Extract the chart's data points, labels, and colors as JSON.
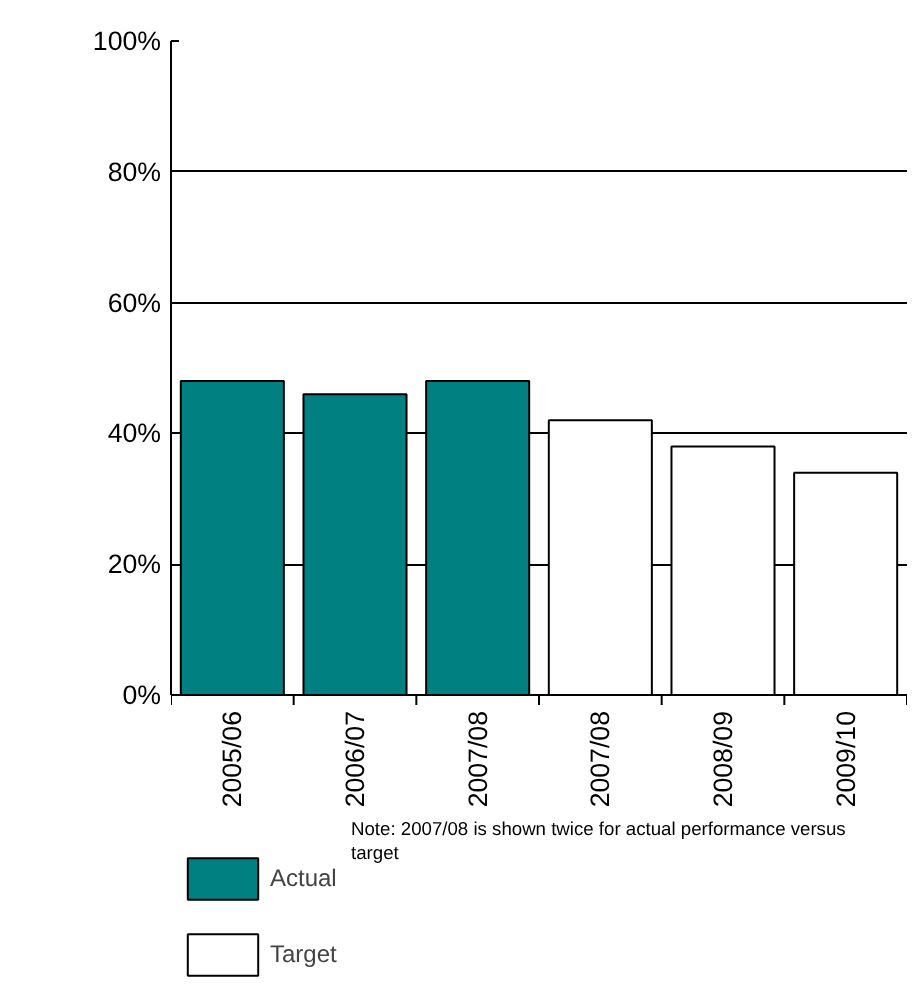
{
  "chart_data": {
    "type": "bar",
    "categories": [
      "2005/06",
      "2006/07",
      "2007/08",
      "2007/08",
      "2008/09",
      "2009/10"
    ],
    "series": [
      {
        "name": "Actual",
        "color": "#008080",
        "values": [
          48,
          46,
          48,
          null,
          null,
          null
        ]
      },
      {
        "name": "Target",
        "color": "#ffffff",
        "values": [
          null,
          null,
          null,
          42,
          38,
          34
        ]
      }
    ],
    "ylim": [
      0,
      100
    ],
    "yticks": [
      {
        "value": 0,
        "label": "0%"
      },
      {
        "value": 20,
        "label": "20%"
      },
      {
        "value": 40,
        "label": "40%"
      },
      {
        "value": 60,
        "label": "60%"
      },
      {
        "value": 80,
        "label": "80%"
      },
      {
        "value": 100,
        "label": "100%"
      }
    ],
    "grid": "y",
    "legend": "bottom left",
    "annotations": [
      "Note: 2007/08 is shown twice for actual performance versus target"
    ]
  }
}
